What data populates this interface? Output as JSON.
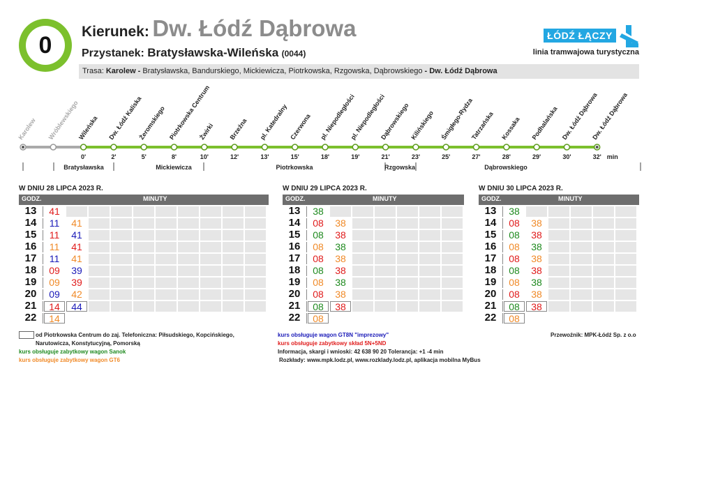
{
  "header": {
    "line_number": "0",
    "direction_label": "Kierunek:",
    "direction_value": "Dw. Łódź Dąbrowa",
    "stop_label": "Przystanek:",
    "stop_value": "Bratysławska-Wileńska",
    "stop_code": "(0044)",
    "route_label": "Trasa:",
    "route_start": "Karolew -",
    "route_middle": " Bratysławska,  Bandurskiego,  Mickiewicza,  Piotrkowska,  Rzgowska,  Dąbrowskiego ",
    "route_end": " - Dw. Łódź Dąbrowa",
    "logo_text": "ŁÓDŹ ŁĄCZY",
    "subtitle": "linia tramwajowa turystyczna",
    "colors": {
      "line": "#7cc02d",
      "logo": "#23a7e2"
    },
    "icon": "lodz-logo-icon"
  },
  "route": {
    "stops": [
      {
        "name": "Karolew",
        "time": "",
        "past": true
      },
      {
        "name": "Wróblewskiego",
        "time": "",
        "past": true
      },
      {
        "name": "Wileńska",
        "time": "0'",
        "past": false
      },
      {
        "name": "Dw. Łódź Kaliska",
        "time": "2'",
        "past": false
      },
      {
        "name": "Żeromskiego",
        "time": "5'",
        "past": false
      },
      {
        "name": "Piotrkowska Centrum",
        "time": "8'",
        "past": false
      },
      {
        "name": "Żwirki",
        "time": "10'",
        "past": false
      },
      {
        "name": "Brzeźna",
        "time": "12'",
        "past": false
      },
      {
        "name": "pl. Katedralny",
        "time": "13'",
        "past": false
      },
      {
        "name": "Czerwona",
        "time": "15'",
        "past": false
      },
      {
        "name": "pl. Niepodległości",
        "time": "18'",
        "past": false
      },
      {
        "name": "pl. Niepodległości",
        "time": "19'",
        "past": false
      },
      {
        "name": "Dąbrowskiego",
        "time": "21'",
        "past": false
      },
      {
        "name": "Kilińskiego",
        "time": "23'",
        "past": false
      },
      {
        "name": "Śmigłego-Rydza",
        "time": "25'",
        "past": false
      },
      {
        "name": "Tatrzańska",
        "time": "27'",
        "past": false
      },
      {
        "name": "Kossaka",
        "time": "28'",
        "past": false
      },
      {
        "name": "Podhalańska",
        "time": "29'",
        "past": false
      },
      {
        "name": "Dw. Łódź Dąbrowa",
        "time": "30'",
        "past": false
      },
      {
        "name": "Dw. Łódź Dąbrowa",
        "time": "32'",
        "past": false
      }
    ],
    "min_label": "min",
    "streets": [
      "Bratysławska",
      "Mickiewicza",
      "Piotrkowska",
      "Rzgowska",
      "Dąbrowskiego"
    ]
  },
  "timetables": [
    {
      "title": "W DNIU 28 LIPCA 2023 R.",
      "hours_header": "GODZ.",
      "minutes_header": "MINUTY",
      "rows": [
        {
          "hour": "13",
          "deps": [
            {
              "m": "41",
              "c": "red"
            }
          ]
        },
        {
          "hour": "14",
          "deps": [
            {
              "m": "11",
              "c": "blue"
            },
            {
              "m": "41",
              "c": "orange"
            }
          ]
        },
        {
          "hour": "15",
          "deps": [
            {
              "m": "11",
              "c": "red"
            },
            {
              "m": "41",
              "c": "blue"
            }
          ]
        },
        {
          "hour": "16",
          "deps": [
            {
              "m": "11",
              "c": "orange"
            },
            {
              "m": "41",
              "c": "red"
            }
          ]
        },
        {
          "hour": "17",
          "deps": [
            {
              "m": "11",
              "c": "blue"
            },
            {
              "m": "41",
              "c": "orange"
            }
          ]
        },
        {
          "hour": "18",
          "deps": [
            {
              "m": "09",
              "c": "red"
            },
            {
              "m": "39",
              "c": "blue"
            }
          ]
        },
        {
          "hour": "19",
          "deps": [
            {
              "m": "09",
              "c": "orange"
            },
            {
              "m": "39",
              "c": "red"
            }
          ]
        },
        {
          "hour": "20",
          "deps": [
            {
              "m": "09",
              "c": "blue"
            },
            {
              "m": "42",
              "c": "orange"
            }
          ]
        },
        {
          "hour": "21",
          "deps": [
            {
              "m": "14",
              "c": "red",
              "box": true
            },
            {
              "m": "44",
              "c": "blue",
              "box": true
            }
          ]
        },
        {
          "hour": "22",
          "deps": [
            {
              "m": "14",
              "c": "orange",
              "box": true
            }
          ]
        }
      ]
    },
    {
      "title": "W DNIU 29 LIPCA 2023 R.",
      "hours_header": "GODZ.",
      "minutes_header": "MINUTY",
      "rows": [
        {
          "hour": "13",
          "deps": [
            {
              "m": "38",
              "c": "green"
            }
          ]
        },
        {
          "hour": "14",
          "deps": [
            {
              "m": "08",
              "c": "red"
            },
            {
              "m": "38",
              "c": "orange"
            }
          ]
        },
        {
          "hour": "15",
          "deps": [
            {
              "m": "08",
              "c": "green"
            },
            {
              "m": "38",
              "c": "red"
            }
          ]
        },
        {
          "hour": "16",
          "deps": [
            {
              "m": "08",
              "c": "orange"
            },
            {
              "m": "38",
              "c": "green"
            }
          ]
        },
        {
          "hour": "17",
          "deps": [
            {
              "m": "08",
              "c": "red"
            },
            {
              "m": "38",
              "c": "orange"
            }
          ]
        },
        {
          "hour": "18",
          "deps": [
            {
              "m": "08",
              "c": "green"
            },
            {
              "m": "38",
              "c": "red"
            }
          ]
        },
        {
          "hour": "19",
          "deps": [
            {
              "m": "08",
              "c": "orange"
            },
            {
              "m": "38",
              "c": "green"
            }
          ]
        },
        {
          "hour": "20",
          "deps": [
            {
              "m": "08",
              "c": "red"
            },
            {
              "m": "38",
              "c": "orange"
            }
          ]
        },
        {
          "hour": "21",
          "deps": [
            {
              "m": "08",
              "c": "green",
              "box": true
            },
            {
              "m": "38",
              "c": "red",
              "box": true
            }
          ]
        },
        {
          "hour": "22",
          "deps": [
            {
              "m": "08",
              "c": "orange",
              "box": true
            }
          ]
        }
      ]
    },
    {
      "title": "W DNIU 30 LIPCA 2023 R.",
      "hours_header": "GODZ.",
      "minutes_header": "MINUTY",
      "rows": [
        {
          "hour": "13",
          "deps": [
            {
              "m": "38",
              "c": "green"
            }
          ]
        },
        {
          "hour": "14",
          "deps": [
            {
              "m": "08",
              "c": "red"
            },
            {
              "m": "38",
              "c": "orange"
            }
          ]
        },
        {
          "hour": "15",
          "deps": [
            {
              "m": "08",
              "c": "green"
            },
            {
              "m": "38",
              "c": "red"
            }
          ]
        },
        {
          "hour": "16",
          "deps": [
            {
              "m": "08",
              "c": "orange"
            },
            {
              "m": "38",
              "c": "green"
            }
          ]
        },
        {
          "hour": "17",
          "deps": [
            {
              "m": "08",
              "c": "red"
            },
            {
              "m": "38",
              "c": "orange"
            }
          ]
        },
        {
          "hour": "18",
          "deps": [
            {
              "m": "08",
              "c": "green"
            },
            {
              "m": "38",
              "c": "red"
            }
          ]
        },
        {
          "hour": "19",
          "deps": [
            {
              "m": "08",
              "c": "orange"
            },
            {
              "m": "38",
              "c": "green"
            }
          ]
        },
        {
          "hour": "20",
          "deps": [
            {
              "m": "08",
              "c": "red"
            },
            {
              "m": "38",
              "c": "orange"
            }
          ]
        },
        {
          "hour": "21",
          "deps": [
            {
              "m": "08",
              "c": "green",
              "box": true
            },
            {
              "m": "38",
              "c": "red",
              "box": true
            }
          ]
        },
        {
          "hour": "22",
          "deps": [
            {
              "m": "08",
              "c": "orange",
              "box": true
            }
          ]
        }
      ]
    }
  ],
  "legend": {
    "box_note_1": "od Piotrkowska Centrum do zaj. Telefoniczna: Piłsudskiego, Kopcińskiego,",
    "box_note_2": "Narutowicza, Konstytucyjną, Pomorską",
    "green_note": "kurs obsługuje zabytkowy wagon Sanok",
    "orange_note": "kurs obsługuje zabytkowy wagon GT6",
    "blue_note": "kurs obsługuje wagon GT8N \"imprezowy\"",
    "red_note": "kurs obsługuje zabytkowy skład 5N+5ND",
    "info": "Informacja, skargi i wnioski: 42 638 90 20 Tolerancja: +1 -4 min",
    "rozklady": "Rozkłady: www.mpk.lodz.pl, www.rozklady.lodz.pl, aplikacja mobilna MyBus",
    "carrier": "Przewoźnik: MPK-Łódź Sp. z o.o",
    "colors": {
      "red": "#e01b1b",
      "blue": "#1a1ab8",
      "orange": "#f08a28",
      "green": "#1f8a1f"
    }
  }
}
